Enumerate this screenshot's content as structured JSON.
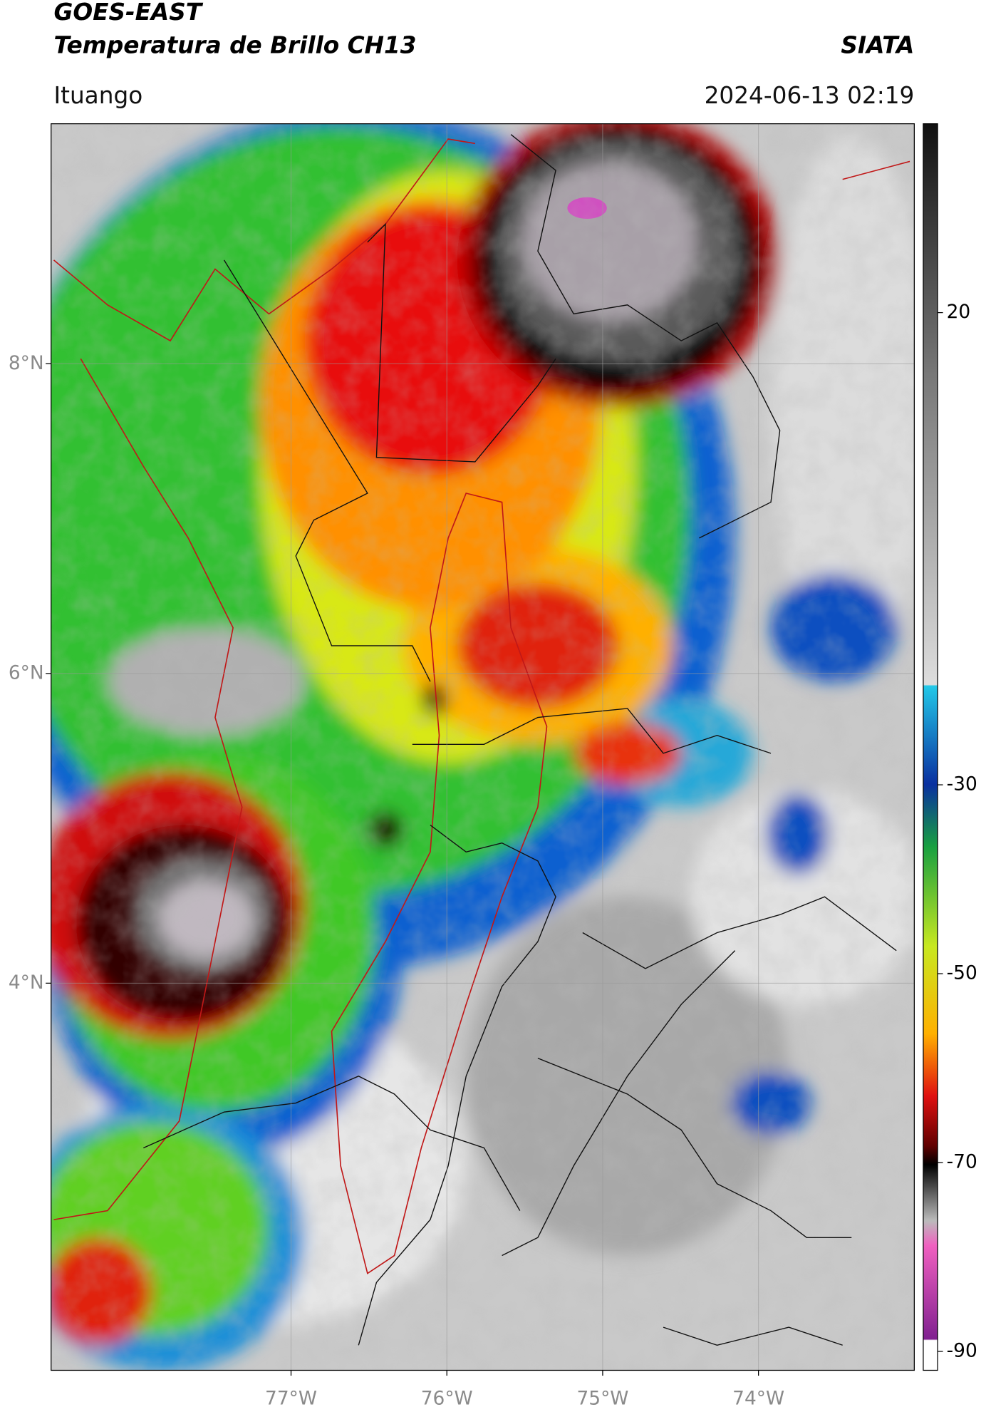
{
  "header": {
    "satellite": "GOES-EAST",
    "product": "Temperatura de Brillo CH13",
    "source": "SIATA",
    "location": "Ituango",
    "datetime": "2024-06-13 02:19"
  },
  "map": {
    "xlim": [
      -78.54,
      -73.0
    ],
    "ylim": [
      1.5,
      9.55
    ],
    "xticks": [
      {
        "value": -77,
        "label": "77°W"
      },
      {
        "value": -76,
        "label": "76°W"
      },
      {
        "value": -75,
        "label": "75°W"
      },
      {
        "value": -74,
        "label": "74°W"
      }
    ],
    "yticks": [
      {
        "value": 8,
        "label": "8°N"
      },
      {
        "value": 6,
        "label": "6°N"
      },
      {
        "value": 4,
        "label": "4°N"
      }
    ]
  },
  "colorbar": {
    "range": [
      -92,
      40
    ],
    "ticks": [
      20,
      -30,
      -50,
      -70,
      -90
    ]
  }
}
